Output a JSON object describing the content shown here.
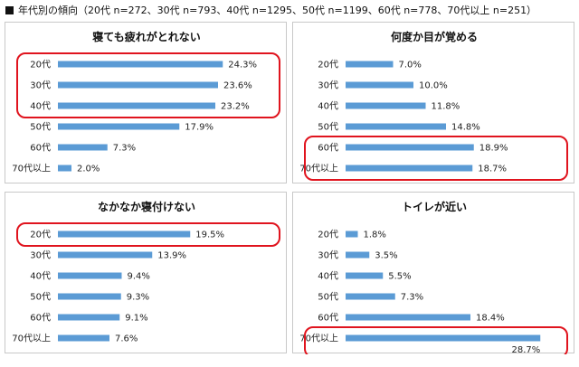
{
  "header": {
    "title": "年代別の傾向（20代 n=272、30代 n=793、40代 n=1295、50代 n=1199、60代 n=778、70代以上 n=251）"
  },
  "colors": {
    "bar": "#5b9bd5",
    "highlight": "#e0141e"
  },
  "chart_data": [
    {
      "type": "bar",
      "orientation": "horizontal",
      "title": "寝ても疲れがとれない",
      "categories": [
        "20代",
        "30代",
        "40代",
        "50代",
        "60代",
        "70代以上"
      ],
      "values": [
        24.3,
        23.6,
        23.2,
        17.9,
        7.3,
        2.0
      ],
      "labels": [
        "24.3%",
        "23.6%",
        "23.2%",
        "17.9%",
        "7.3%",
        "2.0%"
      ],
      "unit": "%",
      "highlighted": [
        "20代",
        "30代",
        "40代"
      ]
    },
    {
      "type": "bar",
      "orientation": "horizontal",
      "title": "何度か目が覚める",
      "categories": [
        "20代",
        "30代",
        "40代",
        "50代",
        "60代",
        "70代以上"
      ],
      "values": [
        7.0,
        10.0,
        11.8,
        14.8,
        18.9,
        18.7
      ],
      "labels": [
        "7.0%",
        "10.0%",
        "11.8%",
        "14.8%",
        "18.9%",
        "18.7%"
      ],
      "unit": "%",
      "highlighted": [
        "60代",
        "70代以上"
      ]
    },
    {
      "type": "bar",
      "orientation": "horizontal",
      "title": "なかなか寝付けない",
      "categories": [
        "20代",
        "30代",
        "40代",
        "50代",
        "60代",
        "70代以上"
      ],
      "values": [
        19.5,
        13.9,
        9.4,
        9.3,
        9.1,
        7.6
      ],
      "labels": [
        "19.5%",
        "13.9%",
        "9.4%",
        "9.3%",
        "9.1%",
        "7.6%"
      ],
      "unit": "%",
      "highlighted": [
        "20代"
      ]
    },
    {
      "type": "bar",
      "orientation": "horizontal",
      "title": "トイレが近い",
      "categories": [
        "20代",
        "30代",
        "40代",
        "50代",
        "60代",
        "70代以上"
      ],
      "values": [
        1.8,
        3.5,
        5.5,
        7.3,
        18.4,
        28.7
      ],
      "labels": [
        "1.8%",
        "3.5%",
        "5.5%",
        "7.3%",
        "18.4%",
        "28.7%"
      ],
      "unit": "%",
      "highlighted": [
        "70代以上"
      ]
    }
  ]
}
